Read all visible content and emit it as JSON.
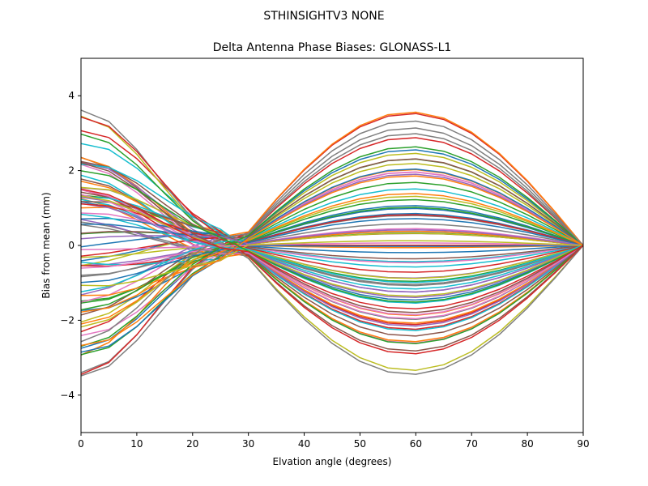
{
  "figure": {
    "suptitle": "STHINSIGHTV3    NONE"
  },
  "chart_data": {
    "type": "line",
    "title": "Delta Antenna Phase Biases: GLONASS-L1",
    "xlabel": "Elvation angle (degrees)",
    "ylabel": "Bias from mean (mm)",
    "xlim": [
      0,
      90
    ],
    "ylim": [
      -5,
      5
    ],
    "grid": false,
    "legend": "none",
    "x_ticks": [
      0,
      10,
      20,
      30,
      40,
      50,
      60,
      70,
      80,
      90
    ],
    "x_tick_labels": [
      "0",
      "10",
      "20",
      "30",
      "40",
      "50",
      "60",
      "70",
      "80",
      "90"
    ],
    "y_ticks": [
      -4,
      -2,
      0,
      2,
      4
    ],
    "y_tick_labels": [
      "−4",
      "−2",
      "0",
      "2",
      "4"
    ],
    "x": [
      0,
      5,
      10,
      15,
      20,
      25,
      30,
      35,
      40,
      45,
      50,
      55,
      60,
      65,
      70,
      75,
      80,
      85,
      90
    ],
    "color_cycle": [
      "#1f77b4",
      "#ff7f0e",
      "#2ca02c",
      "#d62728",
      "#9467bd",
      "#8c564b",
      "#e377c2",
      "#7f7f7f",
      "#bcbd22",
      "#17becf"
    ],
    "series_shape": {
      "count": 84,
      "start_range": [
        -3.55,
        3.65
      ],
      "middle_range": [
        -0.95,
        0.98
      ],
      "end_value": 0
    }
  }
}
